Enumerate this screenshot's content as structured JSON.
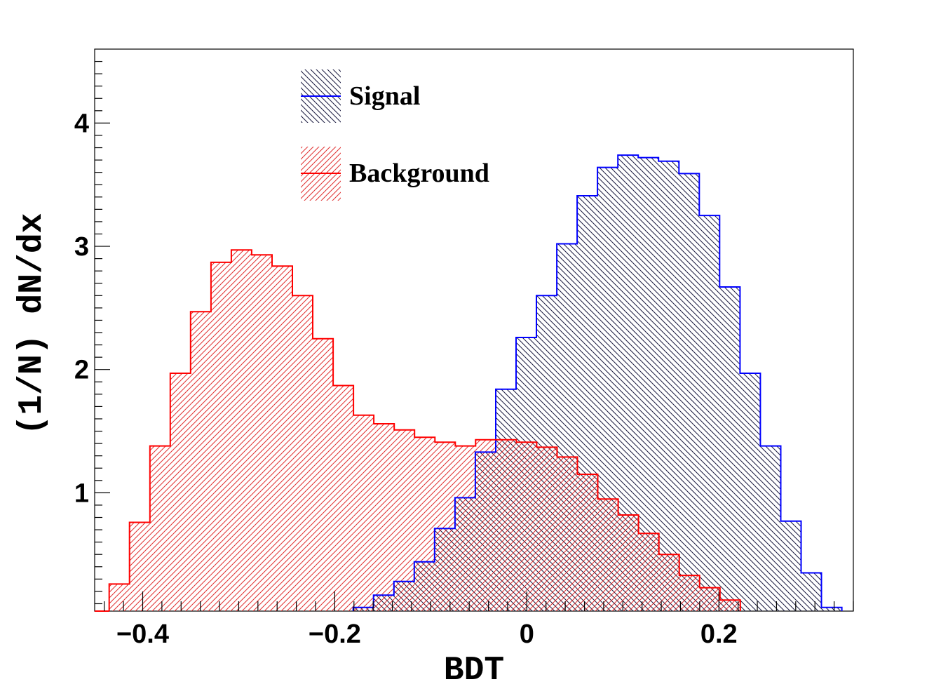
{
  "chart_data": {
    "type": "histogram",
    "xlabel": "BDT",
    "ylabel": "(1/N) dN/dx",
    "xlim": [
      -0.45,
      0.34
    ],
    "ylim": [
      0.04,
      4.6
    ],
    "bin_width": 0.0212,
    "x_ticks": [
      -0.4,
      -0.2,
      0,
      0.2
    ],
    "x_tick_labels": [
      "−0.4",
      "−0.2",
      "0",
      "0.2"
    ],
    "y_ticks": [
      1,
      2,
      3,
      4
    ],
    "y_tick_labels": [
      "1",
      "2",
      "3",
      "4"
    ],
    "grid": false,
    "legend_position": "top-center",
    "series": [
      {
        "name": "Signal",
        "color": "#0000ff",
        "fill": "hatch-backslash",
        "bin_start": -0.1808,
        "values": [
          0.07,
          0.17,
          0.28,
          0.44,
          0.71,
          0.96,
          1.33,
          1.84,
          2.26,
          2.6,
          3.02,
          3.41,
          3.64,
          3.74,
          3.72,
          3.69,
          3.59,
          3.25,
          2.67,
          1.97,
          1.38,
          0.77,
          0.35,
          0.07
        ]
      },
      {
        "name": "Background",
        "color": "#ff0000",
        "fill": "hatch-slash",
        "bin_start": -0.4349,
        "values": [
          0.26,
          0.76,
          1.38,
          1.97,
          2.47,
          2.87,
          2.97,
          2.93,
          2.84,
          2.6,
          2.25,
          1.87,
          1.63,
          1.56,
          1.51,
          1.45,
          1.41,
          1.38,
          1.43,
          1.43,
          1.41,
          1.37,
          1.29,
          1.15,
          0.95,
          0.82,
          0.67,
          0.5,
          0.33,
          0.23,
          0.13
        ]
      }
    ]
  }
}
